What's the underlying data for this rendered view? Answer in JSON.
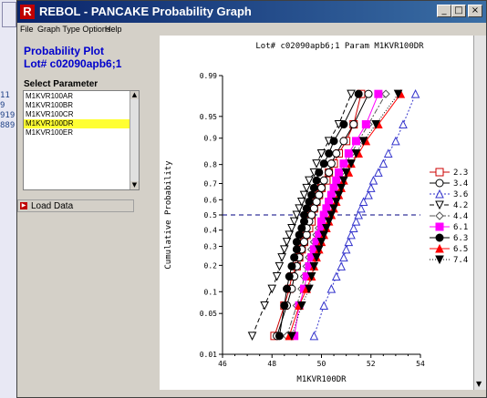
{
  "window": {
    "title": "REBOL - PANCAKE Probability Graph",
    "app_icon_letter": "R"
  },
  "background_fragments": [
    "11",
    "9",
    "919",
    "889"
  ],
  "menu": [
    {
      "label": "File"
    },
    {
      "label": "Graph Type Options"
    },
    {
      "label": "Help"
    }
  ],
  "left": {
    "plot_title": "Probability Plot",
    "lot_title": "Lot# c02090apb6;1",
    "select_label": "Select Parameter",
    "params": [
      {
        "label": "M1KVR100AR",
        "selected": false
      },
      {
        "label": "M1KVR100BR",
        "selected": false
      },
      {
        "label": "M1KVR100CR",
        "selected": false
      },
      {
        "label": "M1KVR100DR",
        "selected": true
      },
      {
        "label": "M1KVR100ER",
        "selected": false
      }
    ],
    "load_label": "Load Data"
  },
  "chart_data": {
    "type": "scatter",
    "title": "Lot# c02090apb6;1 Param M1KVR100DR",
    "xlabel": "M1KVR100DR",
    "ylabel": "Cumulative Probability",
    "xlim": [
      46,
      54
    ],
    "xticks": [
      46,
      48,
      50,
      52,
      54
    ],
    "yticks": [
      0.01,
      0.05,
      0.1,
      0.2,
      0.3,
      0.4,
      0.5,
      0.6,
      0.7,
      0.8,
      0.9,
      0.95,
      0.99
    ],
    "ytick_labels": [
      "0.01",
      "0.05",
      "0.1",
      "0.2",
      "0.3",
      "0.4",
      "0.5",
      "0.6",
      "0.7",
      "0.8",
      "0.9",
      "0.95",
      "0.99"
    ],
    "reference_line": 0.5,
    "probabilities": [
      0.0217,
      0.0652,
      0.1087,
      0.1522,
      0.1957,
      0.2391,
      0.2826,
      0.3261,
      0.3696,
      0.413,
      0.4565,
      0.5,
      0.5435,
      0.587,
      0.6304,
      0.6739,
      0.7174,
      0.7609,
      0.8043,
      0.8478,
      0.8913,
      0.9348,
      0.9783
    ],
    "series": [
      {
        "name": "2.3",
        "color": "#cc0000",
        "marker": "square-open",
        "dash": "",
        "x": [
          48.1,
          48.5,
          48.7,
          48.8,
          49.0,
          49.1,
          49.2,
          49.3,
          49.4,
          49.5,
          49.6,
          49.6,
          49.7,
          49.8,
          49.9,
          50.0,
          50.2,
          50.3,
          50.5,
          50.7,
          51.0,
          51.3,
          51.6
        ]
      },
      {
        "name": "3.4",
        "color": "#000000",
        "marker": "circle-open",
        "dash": "",
        "x": [
          48.2,
          48.6,
          48.8,
          48.9,
          49.0,
          49.1,
          49.2,
          49.3,
          49.4,
          49.4,
          49.5,
          49.6,
          49.7,
          49.8,
          49.9,
          50.0,
          50.1,
          50.3,
          50.4,
          50.6,
          50.9,
          51.3,
          51.9
        ]
      },
      {
        "name": "3.6",
        "color": "#3333cc",
        "marker": "triangle-open",
        "dash": "2,2",
        "x": [
          49.7,
          50.1,
          50.4,
          50.6,
          50.8,
          50.9,
          51.0,
          51.1,
          51.2,
          51.3,
          51.4,
          51.5,
          51.6,
          51.7,
          51.9,
          52.0,
          52.1,
          52.3,
          52.5,
          52.7,
          53.0,
          53.3,
          53.8
        ]
      },
      {
        "name": "4.2",
        "color": "#000000",
        "marker": "triangle-down-open",
        "dash": "5,3",
        "x": [
          47.2,
          47.7,
          48.0,
          48.2,
          48.3,
          48.4,
          48.5,
          48.6,
          48.7,
          48.8,
          48.9,
          49.0,
          49.1,
          49.2,
          49.3,
          49.4,
          49.5,
          49.7,
          49.8,
          50.0,
          50.3,
          50.7,
          51.2
        ]
      },
      {
        "name": "4.4",
        "color": "#555555",
        "marker": "diamond-open",
        "dash": "6,2,2,2",
        "x": [
          48.6,
          49.0,
          49.2,
          49.3,
          49.4,
          49.5,
          49.6,
          49.7,
          49.8,
          49.9,
          50.0,
          50.1,
          50.2,
          50.3,
          50.4,
          50.5,
          50.7,
          50.8,
          51.0,
          51.2,
          51.5,
          51.9,
          52.6
        ]
      },
      {
        "name": "6.1",
        "color": "#ff00ff",
        "marker": "square-filled",
        "dash": "",
        "x": [
          48.9,
          49.1,
          49.3,
          49.4,
          49.5,
          49.6,
          49.7,
          49.8,
          49.9,
          50.0,
          50.0,
          50.1,
          50.2,
          50.3,
          50.4,
          50.5,
          50.6,
          50.7,
          50.9,
          51.1,
          51.4,
          51.8,
          52.3
        ]
      },
      {
        "name": "6.3",
        "color": "#000000",
        "marker": "circle-filled",
        "dash": "",
        "x": [
          48.3,
          48.5,
          48.6,
          48.7,
          48.8,
          48.9,
          49.0,
          49.0,
          49.1,
          49.2,
          49.3,
          49.3,
          49.4,
          49.5,
          49.6,
          49.7,
          49.8,
          49.9,
          50.1,
          50.3,
          50.5,
          50.9,
          51.5
        ]
      },
      {
        "name": "6.5",
        "color": "#ff0000",
        "marker": "triangle-filled",
        "dash": "",
        "x": [
          48.7,
          49.1,
          49.4,
          49.6,
          49.7,
          49.8,
          49.9,
          50.0,
          50.1,
          50.2,
          50.3,
          50.4,
          50.5,
          50.6,
          50.7,
          50.8,
          50.9,
          51.1,
          51.2,
          51.5,
          51.8,
          52.3,
          53.2
        ]
      },
      {
        "name": "7.4",
        "color": "#000000",
        "marker": "triangle-down-filled",
        "dash": "1,2",
        "x": [
          48.8,
          49.2,
          49.5,
          49.6,
          49.7,
          49.8,
          49.9,
          50.0,
          50.1,
          50.2,
          50.3,
          50.4,
          50.5,
          50.6,
          50.7,
          50.8,
          50.9,
          51.0,
          51.2,
          51.4,
          51.7,
          52.2,
          53.1
        ]
      }
    ]
  }
}
